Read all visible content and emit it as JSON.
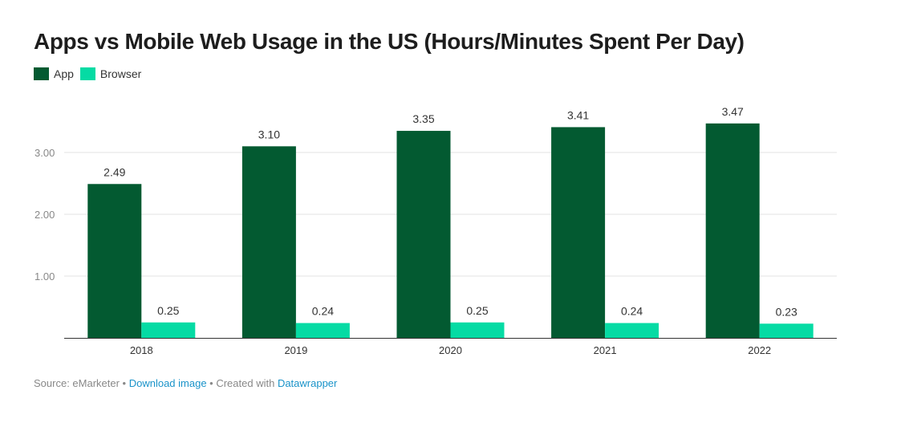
{
  "chart_data": {
    "type": "bar",
    "title": "Apps vs Mobile Web Usage in the US (Hours/Minutes Spent Per Day)",
    "categories": [
      "2018",
      "2019",
      "2020",
      "2021",
      "2022"
    ],
    "series": [
      {
        "name": "App",
        "color": "#035a31",
        "values": [
          2.49,
          3.1,
          3.35,
          3.41,
          3.47
        ],
        "labels": [
          "2.49",
          "3.10",
          "3.35",
          "3.41",
          "3.47"
        ]
      },
      {
        "name": "Browser",
        "color": "#05dba4",
        "values": [
          0.25,
          0.24,
          0.25,
          0.24,
          0.23
        ],
        "labels": [
          "0.25",
          "0.24",
          "0.25",
          "0.24",
          "0.23"
        ]
      }
    ],
    "yticks": [
      "1.00",
      "2.00",
      "3.00"
    ],
    "ylim": [
      0,
      3.6
    ],
    "grid": true,
    "legend": "top-left"
  },
  "footer": {
    "source": "Source: eMarketer",
    "sep1": " • ",
    "download": "Download image",
    "sep2": " • Created with ",
    "tool": "Datawrapper"
  }
}
